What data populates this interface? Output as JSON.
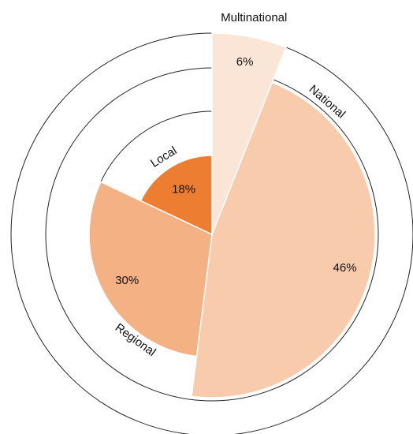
{
  "chart_data": {
    "type": "pie",
    "categories": [
      "Multinational",
      "National",
      "Regional",
      "Local"
    ],
    "values": [
      6,
      46,
      30,
      18
    ],
    "value_labels": [
      "6%",
      "46%",
      "30%",
      "18%"
    ],
    "colors": [
      "#fbe5d6",
      "#f8cbad",
      "#f4b183",
      "#ed7d31"
    ]
  }
}
